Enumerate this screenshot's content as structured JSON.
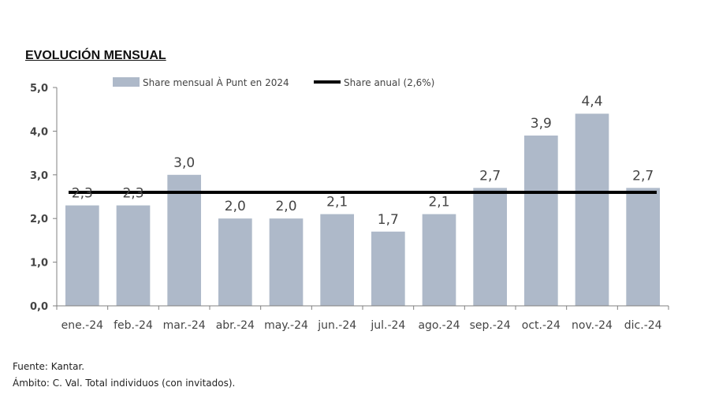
{
  "title": "EVOLUCIÓN MENSUAL",
  "footer": {
    "source": "Fuente: Kantar.",
    "scope": "Ámbito: C. Val. Total individuos (con invitados)."
  },
  "colors": {
    "bar": "#aeb9c9",
    "line": "#000000",
    "axis": "#808080",
    "text": "#444444"
  },
  "chart_data": {
    "type": "bar",
    "categories": [
      "ene.-24",
      "feb.-24",
      "mar.-24",
      "abr.-24",
      "may.-24",
      "jun.-24",
      "jul.-24",
      "ago.-24",
      "sep.-24",
      "oct.-24",
      "nov.-24",
      "dic.-24"
    ],
    "series": [
      {
        "name": "Share mensual À Punt en 2024",
        "type": "bar",
        "values": [
          2.3,
          2.3,
          3.0,
          2.0,
          2.0,
          2.1,
          1.7,
          2.1,
          2.7,
          3.9,
          4.4,
          2.7
        ]
      },
      {
        "name": "Share anual (2,6%)",
        "type": "line",
        "values": [
          2.6,
          2.6,
          2.6,
          2.6,
          2.6,
          2.6,
          2.6,
          2.6,
          2.6,
          2.6,
          2.6,
          2.6
        ]
      }
    ],
    "data_labels": [
      "2,3",
      "2,3",
      "3,0",
      "2,0",
      "2,0",
      "2,1",
      "1,7",
      "2,1",
      "2,7",
      "3,9",
      "4,4",
      "2,7"
    ],
    "yticks": [
      "0,0",
      "1,0",
      "2,0",
      "3,0",
      "4,0",
      "5,0"
    ],
    "ylim": [
      0,
      5
    ],
    "legend_position": "top",
    "grid": false
  }
}
